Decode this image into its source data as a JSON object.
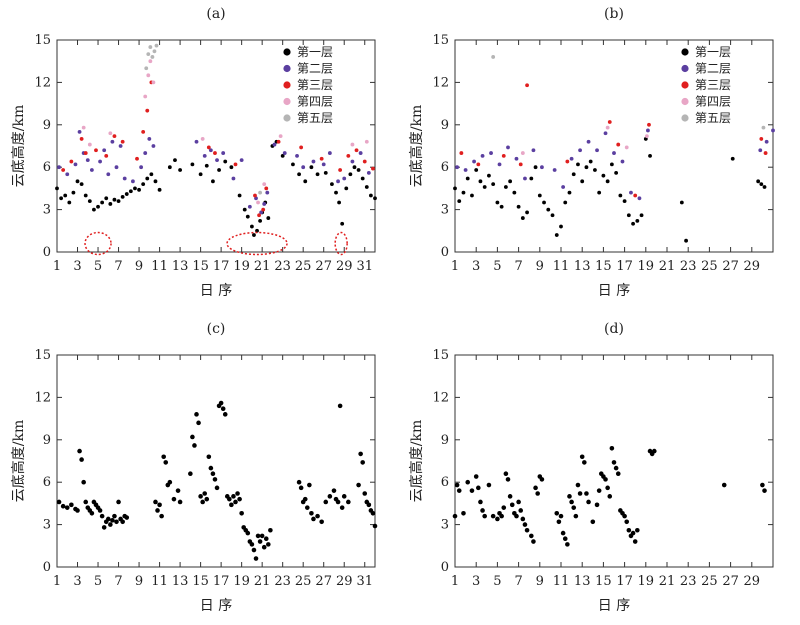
{
  "chart_data": [
    {
      "panel": "(a)",
      "type": "scatter",
      "xlabel": "日 序",
      "ylabel": "云底高度/km",
      "xlim": [
        1,
        32
      ],
      "ylim": [
        0,
        15
      ],
      "xticks": [
        1,
        3,
        5,
        7,
        9,
        11,
        13,
        15,
        17,
        19,
        21,
        23,
        25,
        27,
        29,
        31
      ],
      "yticks": [
        0,
        3,
        6,
        9,
        12,
        15
      ],
      "legend": {
        "placement": "top-right",
        "entries": [
          "第一层",
          "第二层",
          "第三层",
          "第四层",
          "第五层"
        ]
      },
      "series_colors": [
        "#000000",
        "#5b3fa0",
        "#e01f1f",
        "#e8a6c6",
        "#b5b5b5"
      ],
      "series": [
        {
          "name": "第一层",
          "x": [
            1.0,
            1.4,
            1.8,
            2.2,
            2.6,
            3.0,
            3.4,
            3.8,
            4.2,
            4.6,
            5.0,
            5.4,
            5.8,
            6.2,
            6.6,
            7.0,
            7.4,
            7.8,
            8.2,
            8.6,
            9.0,
            9.4,
            9.8,
            10.2,
            10.6,
            11.0,
            12.0,
            12.5,
            13.0,
            14.2,
            15.0,
            15.6,
            16.2,
            16.8,
            17.4,
            18.0,
            18.8,
            19.3,
            19.6,
            20.0,
            20.2,
            20.5,
            20.8,
            21.0,
            21.3,
            21.6,
            22.0,
            22.4,
            23.0,
            24.0,
            24.6,
            25.2,
            25.8,
            26.4,
            27.2,
            27.8,
            28.2,
            28.5,
            28.8,
            29.2,
            29.6,
            30.0,
            30.4,
            30.8,
            31.2,
            31.6,
            32.0
          ],
          "y": [
            4.5,
            3.8,
            4.0,
            3.5,
            4.2,
            5.0,
            4.8,
            4.0,
            3.6,
            3.0,
            3.2,
            3.5,
            3.8,
            3.4,
            3.7,
            3.6,
            3.9,
            4.1,
            4.3,
            4.5,
            4.4,
            4.8,
            5.2,
            5.5,
            5.0,
            4.4,
            6.0,
            6.5,
            5.8,
            6.2,
            5.5,
            6.1,
            5.0,
            5.8,
            6.4,
            6.0,
            4.0,
            3.0,
            2.5,
            1.8,
            1.2,
            1.5,
            2.2,
            2.8,
            3.5,
            2.4,
            7.5,
            7.8,
            6.8,
            6.2,
            5.5,
            5.0,
            6.0,
            5.5,
            5.6,
            4.8,
            4.2,
            3.5,
            2.0,
            4.5,
            5.5,
            6.0,
            5.8,
            5.2,
            4.6,
            4.0,
            3.8
          ]
        },
        {
          "name": "第二层",
          "x": [
            1.2,
            2.0,
            2.8,
            3.2,
            3.6,
            4.0,
            4.4,
            5.2,
            5.6,
            6.0,
            6.4,
            6.8,
            7.2,
            7.6,
            8.4,
            9.2,
            9.6,
            10.0,
            10.4,
            14.6,
            15.4,
            16.0,
            16.6,
            17.2,
            18.2,
            19.0,
            19.8,
            20.4,
            20.9,
            21.2,
            21.5,
            22.2,
            23.2,
            24.4,
            25.0,
            26.0,
            27.0,
            27.6,
            28.4,
            29.0,
            29.8,
            30.6,
            31.4
          ],
          "y": [
            6.0,
            5.5,
            6.2,
            8.5,
            7.0,
            6.5,
            5.8,
            6.4,
            7.2,
            5.5,
            7.8,
            6.0,
            7.5,
            5.2,
            5.0,
            6.0,
            7.0,
            8.0,
            7.5,
            7.8,
            6.8,
            7.2,
            6.5,
            7.0,
            5.2,
            6.5,
            3.2,
            3.8,
            2.8,
            3.4,
            4.2,
            7.6,
            7.0,
            6.8,
            6.0,
            6.4,
            6.2,
            7.0,
            5.0,
            5.2,
            6.4,
            7.0,
            5.6
          ]
        },
        {
          "name": "第三层",
          "x": [
            1.6,
            2.4,
            3.4,
            3.8,
            4.8,
            5.8,
            6.6,
            7.4,
            8.8,
            9.4,
            9.8,
            10.2,
            15.8,
            16.4,
            18.4,
            20.3,
            20.7,
            21.1,
            21.4,
            22.6,
            24.8,
            26.8,
            28.6,
            29.4,
            30.2,
            31.0,
            31.8
          ],
          "y": [
            5.8,
            6.4,
            8.0,
            7.0,
            7.2,
            6.8,
            8.2,
            7.8,
            6.6,
            8.5,
            10.0,
            12.0,
            7.4,
            7.0,
            6.2,
            4.0,
            2.6,
            3.0,
            4.5,
            7.8,
            7.4,
            6.6,
            5.8,
            6.8,
            7.2,
            6.4,
            5.9
          ]
        },
        {
          "name": "第四层",
          "x": [
            3.6,
            4.2,
            6.2,
            9.6,
            9.9,
            10.1,
            10.4,
            15.2,
            20.6,
            21.2,
            22.8,
            29.8,
            31.2
          ],
          "y": [
            8.8,
            7.6,
            8.4,
            11.0,
            12.5,
            13.5,
            12.0,
            8.0,
            3.5,
            4.8,
            8.2,
            7.6,
            7.8
          ]
        },
        {
          "name": "第五层",
          "x": [
            9.7,
            9.9,
            10.1,
            10.3,
            10.5,
            10.7,
            20.8
          ],
          "y": [
            13.0,
            14.0,
            14.5,
            13.8,
            14.2,
            14.6,
            4.2
          ]
        }
      ],
      "annotations": [
        "dotted-circle near day 4.5–5.5 at 0–1 km",
        "dotted-circle near day 19–22 at 0–1 km",
        "dotted-circle near day 28.5–29 at 0–1 km"
      ]
    },
    {
      "panel": "(b)",
      "type": "scatter",
      "xlabel": "日 序",
      "ylabel": "云底高度/km",
      "xlim": [
        1,
        31
      ],
      "ylim": [
        0,
        15
      ],
      "xticks": [
        1,
        3,
        5,
        7,
        9,
        11,
        13,
        15,
        17,
        19,
        21,
        23,
        25,
        27,
        29
      ],
      "yticks": [
        0,
        3,
        6,
        9,
        12,
        15
      ],
      "legend": {
        "placement": "top-right",
        "entries": [
          "第一层",
          "第二层",
          "第三层",
          "第四层",
          "第五层"
        ]
      },
      "series_colors": [
        "#000000",
        "#5b3fa0",
        "#e01f1f",
        "#e8a6c6",
        "#b5b5b5"
      ],
      "series": [
        {
          "name": "第一层",
          "x": [
            1.0,
            1.4,
            1.8,
            2.2,
            2.6,
            3.0,
            3.4,
            3.8,
            4.2,
            4.6,
            5.0,
            5.4,
            5.8,
            6.2,
            6.6,
            7.0,
            7.4,
            7.8,
            8.2,
            8.6,
            9.0,
            9.4,
            9.8,
            10.2,
            10.6,
            11.0,
            11.4,
            11.8,
            12.2,
            12.6,
            13.0,
            13.4,
            13.8,
            14.2,
            14.6,
            15.0,
            15.4,
            15.8,
            16.2,
            16.6,
            17.0,
            17.4,
            17.8,
            18.2,
            18.6,
            19.0,
            19.4,
            22.4,
            22.8,
            27.2,
            29.6,
            29.9,
            30.2
          ],
          "y": [
            4.5,
            3.6,
            4.2,
            5.2,
            4.0,
            5.8,
            5.0,
            4.6,
            5.4,
            4.8,
            3.5,
            3.2,
            4.6,
            5.0,
            4.2,
            3.2,
            2.4,
            2.8,
            5.2,
            6.0,
            4.0,
            3.5,
            3.0,
            2.6,
            1.2,
            1.8,
            3.5,
            4.2,
            5.5,
            6.2,
            5.0,
            6.0,
            6.4,
            5.8,
            4.2,
            5.4,
            5.0,
            6.2,
            5.6,
            4.0,
            3.6,
            2.6,
            2.0,
            2.2,
            2.6,
            8.0,
            6.8,
            3.5,
            0.8,
            6.6,
            5.0,
            4.8,
            4.6
          ]
        },
        {
          "name": "第二层",
          "x": [
            1.2,
            2.0,
            2.8,
            3.6,
            4.4,
            5.2,
            6.0,
            6.8,
            7.6,
            8.4,
            9.2,
            10.4,
            11.2,
            12.0,
            12.8,
            13.6,
            14.4,
            15.2,
            16.0,
            16.8,
            17.6,
            18.4,
            19.2,
            29.8,
            30.4,
            31.0
          ],
          "y": [
            6.0,
            5.8,
            6.4,
            6.8,
            7.0,
            6.2,
            7.4,
            6.6,
            5.2,
            7.2,
            6.0,
            5.8,
            4.6,
            6.6,
            7.2,
            7.8,
            7.2,
            8.4,
            7.0,
            6.4,
            4.2,
            3.8,
            8.6,
            7.2,
            7.8,
            8.6
          ]
        },
        {
          "name": "第三层",
          "x": [
            1.6,
            3.2,
            5.6,
            7.2,
            7.8,
            11.6,
            15.6,
            16.4,
            18.0,
            19.3,
            29.9,
            30.3
          ],
          "y": [
            7.0,
            6.2,
            6.8,
            6.2,
            11.8,
            6.4,
            9.2,
            7.6,
            4.0,
            9.0,
            8.0,
            7.0
          ]
        },
        {
          "name": "第四层",
          "x": [
            7.4,
            15.4,
            17.2,
            19.1
          ],
          "y": [
            7.0,
            8.8,
            7.4,
            8.2
          ]
        },
        {
          "name": "第五层",
          "x": [
            4.6,
            30.1
          ],
          "y": [
            13.8,
            8.8
          ]
        }
      ]
    },
    {
      "panel": "(c)",
      "type": "scatter",
      "xlabel": "日 序",
      "ylabel": "云底高度/km",
      "xlim": [
        1,
        32
      ],
      "ylim": [
        0,
        15
      ],
      "xticks": [
        1,
        3,
        5,
        7,
        9,
        11,
        13,
        15,
        17,
        19,
        21,
        23,
        25,
        27,
        29,
        31
      ],
      "yticks": [
        0,
        3,
        6,
        9,
        12,
        15
      ],
      "series_colors": [
        "#000000"
      ],
      "series": [
        {
          "name": "",
          "x": [
            1.2,
            1.6,
            2.0,
            2.4,
            2.8,
            3.0,
            3.2,
            3.4,
            3.6,
            3.8,
            4.0,
            4.2,
            4.4,
            4.6,
            4.8,
            5.0,
            5.2,
            5.4,
            5.6,
            5.8,
            6.0,
            6.2,
            6.4,
            6.6,
            6.8,
            7.0,
            7.2,
            7.4,
            7.6,
            7.8,
            10.6,
            10.8,
            11.0,
            11.2,
            11.4,
            11.6,
            11.8,
            12.0,
            12.4,
            12.8,
            13.0,
            14.0,
            14.2,
            14.4,
            14.6,
            14.8,
            15.0,
            15.2,
            15.4,
            15.6,
            15.8,
            16.0,
            16.2,
            16.4,
            16.6,
            16.8,
            17.0,
            17.2,
            17.4,
            17.6,
            17.8,
            18.0,
            18.2,
            18.4,
            18.6,
            18.8,
            19.0,
            19.2,
            19.4,
            19.6,
            19.8,
            20.0,
            20.2,
            20.4,
            20.6,
            20.8,
            21.0,
            21.2,
            21.4,
            21.6,
            21.8,
            24.6,
            24.8,
            25.0,
            25.2,
            25.4,
            25.6,
            25.8,
            26.0,
            26.4,
            26.8,
            27.2,
            27.6,
            28.0,
            28.2,
            28.4,
            28.6,
            28.8,
            29.0,
            29.4,
            30.4,
            30.6,
            30.8,
            31.0,
            31.2,
            31.4,
            31.6,
            31.8,
            32.0
          ],
          "y": [
            4.6,
            4.3,
            4.2,
            4.4,
            4.1,
            4.0,
            8.2,
            7.6,
            6.0,
            4.6,
            4.2,
            4.0,
            3.8,
            4.6,
            4.4,
            4.2,
            4.0,
            3.6,
            2.8,
            3.2,
            3.4,
            3.0,
            3.3,
            3.6,
            3.2,
            4.6,
            3.4,
            3.2,
            3.6,
            3.5,
            4.6,
            4.0,
            4.4,
            3.6,
            7.8,
            7.4,
            5.8,
            6.0,
            4.8,
            5.4,
            4.6,
            6.6,
            9.2,
            8.6,
            10.8,
            10.2,
            5.0,
            4.6,
            5.2,
            4.8,
            7.8,
            7.0,
            6.6,
            6.2,
            5.6,
            11.4,
            11.6,
            11.2,
            10.8,
            5.0,
            4.8,
            4.4,
            5.0,
            4.6,
            5.2,
            4.8,
            3.8,
            2.8,
            2.6,
            2.4,
            1.8,
            1.6,
            1.2,
            0.6,
            2.2,
            1.8,
            2.2,
            1.4,
            2.0,
            1.6,
            2.6,
            6.0,
            5.6,
            4.6,
            4.8,
            4.2,
            5.8,
            3.8,
            3.4,
            3.6,
            3.2,
            4.6,
            5.0,
            5.4,
            4.8,
            4.6,
            11.4,
            4.2,
            5.0,
            4.6,
            5.8,
            8.0,
            7.4,
            5.2,
            4.6,
            4.4,
            4.0,
            3.8,
            2.9
          ]
        }
      ]
    },
    {
      "panel": "(d)",
      "type": "scatter",
      "xlabel": "日 序",
      "ylabel": "云底高度/km",
      "xlim": [
        1,
        31
      ],
      "ylim": [
        0,
        15
      ],
      "xticks": [
        1,
        3,
        5,
        7,
        9,
        11,
        13,
        15,
        17,
        19,
        21,
        23,
        25,
        27,
        29
      ],
      "yticks": [
        0,
        3,
        6,
        9,
        12,
        15
      ],
      "series_colors": [
        "#000000"
      ],
      "series": [
        {
          "name": "",
          "x": [
            1.0,
            1.2,
            1.4,
            1.8,
            2.2,
            2.6,
            3.0,
            3.2,
            3.4,
            3.6,
            3.8,
            4.2,
            4.6,
            5.0,
            5.2,
            5.4,
            5.6,
            5.8,
            6.0,
            6.2,
            6.4,
            6.6,
            6.8,
            7.0,
            7.2,
            7.4,
            7.6,
            7.8,
            8.2,
            8.4,
            8.6,
            8.8,
            9.0,
            9.2,
            10.6,
            10.8,
            11.0,
            11.2,
            11.4,
            11.6,
            11.8,
            12.0,
            12.2,
            12.4,
            12.6,
            12.8,
            13.0,
            13.2,
            13.4,
            13.6,
            14.0,
            14.4,
            14.6,
            14.8,
            15.0,
            15.2,
            15.4,
            15.6,
            15.8,
            16.0,
            16.2,
            16.4,
            16.6,
            16.8,
            17.0,
            17.2,
            17.4,
            17.6,
            17.8,
            18.0,
            18.2,
            19.4,
            19.6,
            19.8,
            26.4,
            30.0,
            30.2
          ],
          "y": [
            3.6,
            5.8,
            5.4,
            3.8,
            6.0,
            5.4,
            6.4,
            5.6,
            4.6,
            4.0,
            3.6,
            5.8,
            3.6,
            3.4,
            3.8,
            3.6,
            4.2,
            6.6,
            6.2,
            5.0,
            4.4,
            3.8,
            3.6,
            4.6,
            4.0,
            3.4,
            3.0,
            2.6,
            2.2,
            1.8,
            5.6,
            5.2,
            6.4,
            6.2,
            3.8,
            3.2,
            3.6,
            2.4,
            2.0,
            1.6,
            5.0,
            4.6,
            4.2,
            3.6,
            5.8,
            5.2,
            7.8,
            7.4,
            5.2,
            4.6,
            3.2,
            4.4,
            5.4,
            6.6,
            6.4,
            6.2,
            5.6,
            5.0,
            8.4,
            7.4,
            7.0,
            6.6,
            4.0,
            3.8,
            3.6,
            3.2,
            2.6,
            2.2,
            2.4,
            1.8,
            2.6,
            8.2,
            8.0,
            8.2,
            5.8,
            5.8,
            5.4
          ]
        }
      ]
    }
  ]
}
